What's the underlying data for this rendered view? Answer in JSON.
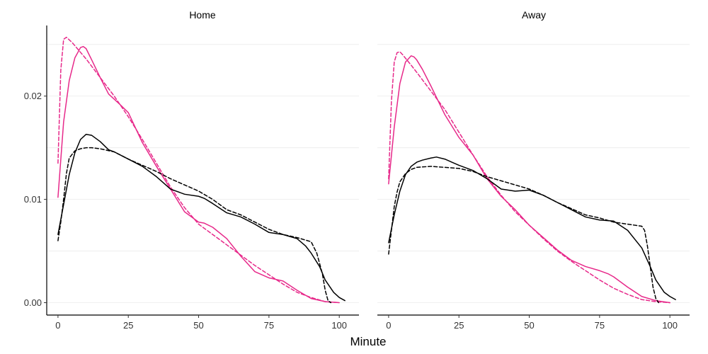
{
  "chart_data": {
    "type": "line",
    "xlabel": "Minute",
    "ylabel": "",
    "xlim": [
      -4,
      107
    ],
    "ylim": [
      -0.0012,
      0.0267
    ],
    "x_ticks": [
      0,
      25,
      50,
      75,
      100
    ],
    "x_tick_labels": [
      "0",
      "25",
      "50",
      "75",
      "100"
    ],
    "y_ticks": [
      0,
      0.01,
      0.02
    ],
    "y_tick_labels": [
      "0.00",
      "0.01",
      "0.02"
    ],
    "y_minor_gridlines": [
      0.005,
      0.015,
      0.025
    ],
    "grid": true,
    "colors": {
      "pink": "#e7298a",
      "black": "#000000"
    },
    "panels": [
      {
        "title": "Home",
        "series": [
          {
            "color": "#e7298a",
            "dash": false,
            "x": [
              0,
              2,
              4,
              6,
              8,
              9,
              10,
              12,
              15,
              18,
              22,
              25,
              30,
              35,
              40,
              45,
              50,
              52,
              55,
              60,
              65,
              70,
              75,
              80,
              85,
              90,
              95,
              100
            ],
            "y": [
              0.0102,
              0.0175,
              0.0215,
              0.0237,
              0.0247,
              0.0248,
              0.0246,
              0.0235,
              0.0218,
              0.0202,
              0.0192,
              0.0184,
              0.0155,
              0.0132,
              0.011,
              0.0088,
              0.0078,
              0.0077,
              0.0073,
              0.0062,
              0.0045,
              0.003,
              0.0024,
              0.0021,
              0.0012,
              0.0004,
              0.0001,
              0.0
            ]
          },
          {
            "color": "#e7298a",
            "dash": true,
            "x": [
              0,
              1,
              2,
              3,
              5,
              10,
              15,
              20,
              25,
              30,
              35,
              40,
              45,
              50,
              55,
              60,
              65,
              70,
              75,
              80,
              85,
              90,
              95,
              100
            ],
            "y": [
              0.0135,
              0.0225,
              0.0255,
              0.0257,
              0.0252,
              0.0236,
              0.0218,
              0.02,
              0.018,
              0.0158,
              0.0135,
              0.0112,
              0.0092,
              0.0076,
              0.0066,
              0.0056,
              0.0046,
              0.0036,
              0.0027,
              0.0018,
              0.001,
              0.0005,
              0.0001,
              0.0
            ]
          },
          {
            "color": "#000000",
            "dash": false,
            "x": [
              0,
              2,
              4,
              6,
              8,
              10,
              12,
              15,
              18,
              20,
              25,
              30,
              35,
              40,
              45,
              50,
              52,
              55,
              60,
              65,
              70,
              75,
              80,
              85,
              88,
              90,
              93,
              95,
              98,
              100,
              102
            ],
            "y": [
              0.0066,
              0.0095,
              0.0124,
              0.0145,
              0.0158,
              0.0163,
              0.0162,
              0.0156,
              0.0148,
              0.0146,
              0.0139,
              0.0132,
              0.0122,
              0.011,
              0.0105,
              0.0103,
              0.0101,
              0.0096,
              0.0087,
              0.0083,
              0.0076,
              0.0068,
              0.0066,
              0.0062,
              0.0055,
              0.0048,
              0.0035,
              0.0022,
              0.001,
              0.0005,
              0.0002
            ]
          },
          {
            "color": "#000000",
            "dash": true,
            "x": [
              0,
              1,
              2,
              3,
              4,
              6,
              8,
              10,
              12,
              15,
              20,
              25,
              30,
              35,
              40,
              45,
              50,
              55,
              60,
              65,
              70,
              75,
              80,
              85,
              90,
              92,
              94,
              95,
              96,
              97
            ],
            "y": [
              0.006,
              0.0078,
              0.01,
              0.0125,
              0.014,
              0.0147,
              0.0149,
              0.015,
              0.015,
              0.0149,
              0.0146,
              0.0139,
              0.0133,
              0.0127,
              0.012,
              0.0114,
              0.0108,
              0.01,
              0.009,
              0.0085,
              0.0078,
              0.0071,
              0.0066,
              0.0063,
              0.0059,
              0.0048,
              0.0028,
              0.0012,
              0.0002,
              0.0
            ]
          }
        ]
      },
      {
        "title": "Away",
        "series": [
          {
            "color": "#e7298a",
            "dash": false,
            "x": [
              0,
              2,
              4,
              6,
              8,
              9,
              10,
              12,
              15,
              20,
              25,
              30,
              35,
              40,
              45,
              50,
              55,
              60,
              65,
              70,
              75,
              78,
              80,
              85,
              90,
              95,
              100
            ],
            "y": [
              0.0115,
              0.017,
              0.0212,
              0.0233,
              0.0239,
              0.0238,
              0.0235,
              0.0226,
              0.021,
              0.0182,
              0.016,
              0.0143,
              0.012,
              0.0103,
              0.009,
              0.0075,
              0.0063,
              0.0051,
              0.0041,
              0.0035,
              0.0031,
              0.0028,
              0.0025,
              0.0015,
              0.0006,
              0.0002,
              0.0
            ]
          },
          {
            "color": "#e7298a",
            "dash": true,
            "x": [
              0,
              1,
              2,
              3,
              4,
              5,
              8,
              10,
              15,
              20,
              25,
              30,
              35,
              40,
              45,
              50,
              55,
              60,
              65,
              70,
              75,
              80,
              85,
              90,
              95,
              100
            ],
            "y": [
              0.012,
              0.0195,
              0.0233,
              0.0242,
              0.0243,
              0.024,
              0.023,
              0.0223,
              0.0205,
              0.0187,
              0.0165,
              0.0143,
              0.0122,
              0.0104,
              0.0088,
              0.0075,
              0.0062,
              0.005,
              0.004,
              0.0031,
              0.0022,
              0.0014,
              0.0008,
              0.0003,
              0.0001,
              0.0
            ]
          },
          {
            "color": "#000000",
            "dash": false,
            "x": [
              0,
              2,
              4,
              6,
              8,
              10,
              12,
              15,
              17,
              20,
              25,
              30,
              35,
              40,
              45,
              50,
              55,
              60,
              65,
              70,
              75,
              80,
              85,
              90,
              93,
              95,
              98,
              100,
              102
            ],
            "y": [
              0.0058,
              0.0085,
              0.0108,
              0.0124,
              0.0132,
              0.0136,
              0.0138,
              0.014,
              0.0141,
              0.0139,
              0.0133,
              0.0128,
              0.012,
              0.011,
              0.0108,
              0.0109,
              0.0104,
              0.0097,
              0.009,
              0.0083,
              0.008,
              0.0079,
              0.007,
              0.0053,
              0.0035,
              0.0022,
              0.001,
              0.0006,
              0.0003
            ]
          },
          {
            "color": "#000000",
            "dash": true,
            "x": [
              0,
              1,
              2,
              3,
              4,
              6,
              8,
              10,
              15,
              20,
              25,
              30,
              35,
              40,
              45,
              50,
              55,
              60,
              65,
              70,
              75,
              80,
              85,
              90,
              91,
              92,
              93,
              94,
              95,
              96
            ],
            "y": [
              0.0047,
              0.007,
              0.0093,
              0.0107,
              0.0117,
              0.0125,
              0.0129,
              0.0131,
              0.0132,
              0.0131,
              0.013,
              0.0127,
              0.0122,
              0.0118,
              0.0114,
              0.011,
              0.0104,
              0.0097,
              0.0091,
              0.0085,
              0.0082,
              0.0078,
              0.0076,
              0.0074,
              0.007,
              0.0055,
              0.0035,
              0.0015,
              0.0004,
              0.0
            ]
          }
        ]
      }
    ]
  }
}
